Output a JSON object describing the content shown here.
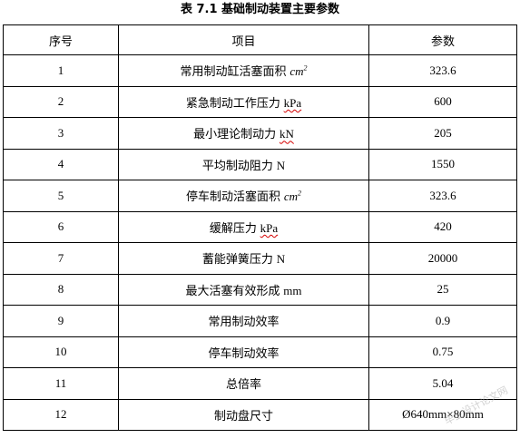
{
  "caption": "表 7.1 基础制动装置主要参数",
  "columns": [
    "序号",
    "项目",
    "参数"
  ],
  "rows": [
    {
      "no": "1",
      "item": "常用制动缸活塞面积",
      "unit": "cm",
      "unit_sup": "2",
      "unit_style": "italic",
      "value": "323.6"
    },
    {
      "no": "2",
      "item": "紧急制动工作压力",
      "unit": "kPa",
      "unit_sup": "",
      "unit_style": "squiggle",
      "value": "600"
    },
    {
      "no": "3",
      "item": "最小理论制动力",
      "unit": "kN",
      "unit_sup": "",
      "unit_style": "squiggle",
      "value": "205"
    },
    {
      "no": "4",
      "item": "平均制动阻力",
      "unit": "N",
      "unit_sup": "",
      "unit_style": "plain",
      "value": "1550"
    },
    {
      "no": "5",
      "item": "停车制动活塞面积",
      "unit": "cm",
      "unit_sup": "2",
      "unit_style": "italic",
      "value": "323.6"
    },
    {
      "no": "6",
      "item": "缓解压力",
      "unit": "kPa",
      "unit_sup": "",
      "unit_style": "squiggle",
      "value": "420"
    },
    {
      "no": "7",
      "item": "蓄能弹簧压力",
      "unit": "N",
      "unit_sup": "",
      "unit_style": "plain",
      "value": "20000"
    },
    {
      "no": "8",
      "item": "最大活塞有效形成",
      "unit": "mm",
      "unit_sup": "",
      "unit_style": "plain",
      "value": "25"
    },
    {
      "no": "9",
      "item": "常用制动效率",
      "unit": "",
      "unit_sup": "",
      "unit_style": "plain",
      "value": "0.9"
    },
    {
      "no": "10",
      "item": "停车制动效率",
      "unit": "",
      "unit_sup": "",
      "unit_style": "plain",
      "value": "0.75"
    },
    {
      "no": "11",
      "item": "总倍率",
      "unit": "",
      "unit_sup": "",
      "unit_style": "plain",
      "value": "5.04"
    },
    {
      "no": "12",
      "item": "制动盘尺寸",
      "unit": "",
      "unit_sup": "",
      "unit_style": "plain",
      "value": "Ø640mm×80mm"
    }
  ],
  "watermark": "毕业设计论文网"
}
